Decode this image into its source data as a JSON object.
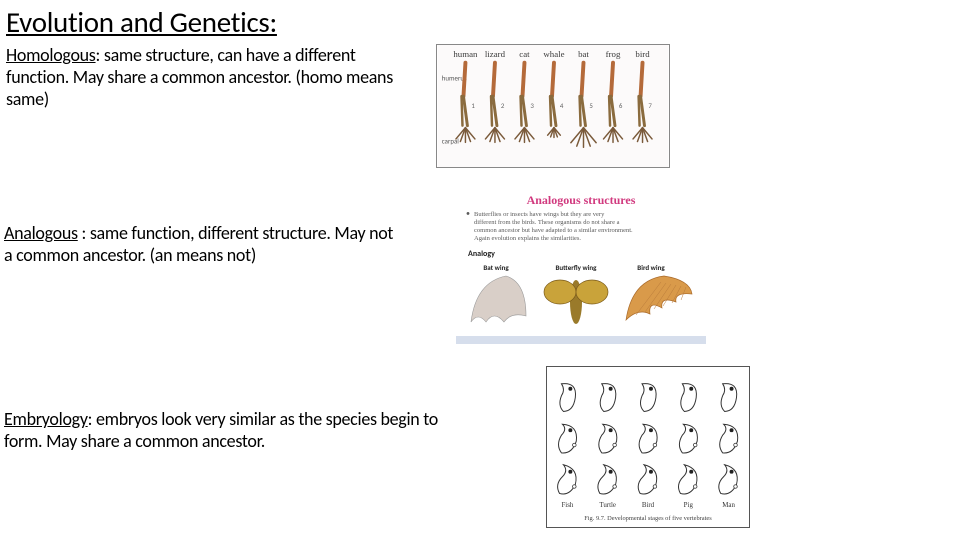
{
  "title": "Evolution and Genetics:",
  "sections": {
    "homologous": {
      "term": "Homologous",
      "definition": ": same structure, can have a different function. May share a common ancestor. (homo means same)"
    },
    "analogous": {
      "term": "Analogous",
      "definition": " : same function, different structure. May not a common ancestor. (an means not)"
    },
    "embryology": {
      "term": "Embryology",
      "definition": ": embryos look very similar as the species begin to form. May share a common ancestor."
    }
  },
  "figures": {
    "homologous": {
      "type": "infographic",
      "background_color": "#fcfafa",
      "labels": [
        "human",
        "lizard",
        "cat",
        "whale",
        "bat",
        "frog",
        "bird"
      ],
      "label_font_size": 9,
      "label_color": "#3a3a3a",
      "bone_colors": {
        "humerus": "#b46a3a",
        "radius": "#8a6b3e",
        "outline": "#7a5a3a"
      },
      "side_text": {
        "left": "humerus",
        "right": "carpal",
        "font_size": 7,
        "color": "#555555"
      }
    },
    "analogous": {
      "type": "infographic",
      "title": "Analogous structures",
      "title_color": "#d13a7f",
      "title_font_size": 12,
      "bullet": "•",
      "bullet_text": "Butterflies or insects have wings but they are very different from the birds. These organisms do not share a common ancestor but have adapted to a similar environment. Again evolution explains the similarities.",
      "bullet_font_size": 6.5,
      "bullet_color": "#5a5a5a",
      "subheading": "Analogy",
      "subheading_font_size": 8,
      "sub_labels": [
        "Bat wing",
        "Butterfly wing",
        "Bird wing"
      ],
      "sub_label_font_size": 7,
      "panel_bg": "#ffffff",
      "wing_colors": {
        "bat": "#d9cfc8",
        "butterfly_body": "#9a7a2a",
        "butterfly_wing": "#c9a33a",
        "bird": "#d99a4a"
      },
      "footer_color": "#8aa0c8"
    },
    "embryology": {
      "type": "infographic",
      "background_color": "#ffffff",
      "border_color": "#555555",
      "rows": 3,
      "cols": 5,
      "col_labels": [
        "Fish",
        "Turtle",
        "Bird",
        "Pig",
        "Man"
      ],
      "col_label_font_size": 7,
      "caption": "Fig. 9.7. Developmental stages of five vertebrates",
      "caption_font_size": 6.5,
      "embryo_stroke": "#333333",
      "embryo_fill": "#ffffff",
      "eye_fill": "#222222"
    }
  },
  "style": {
    "page_bg": "#ffffff",
    "text_color": "#000000",
    "title_fontsize": 29,
    "body_fontsize": 18,
    "line_height": 22
  }
}
